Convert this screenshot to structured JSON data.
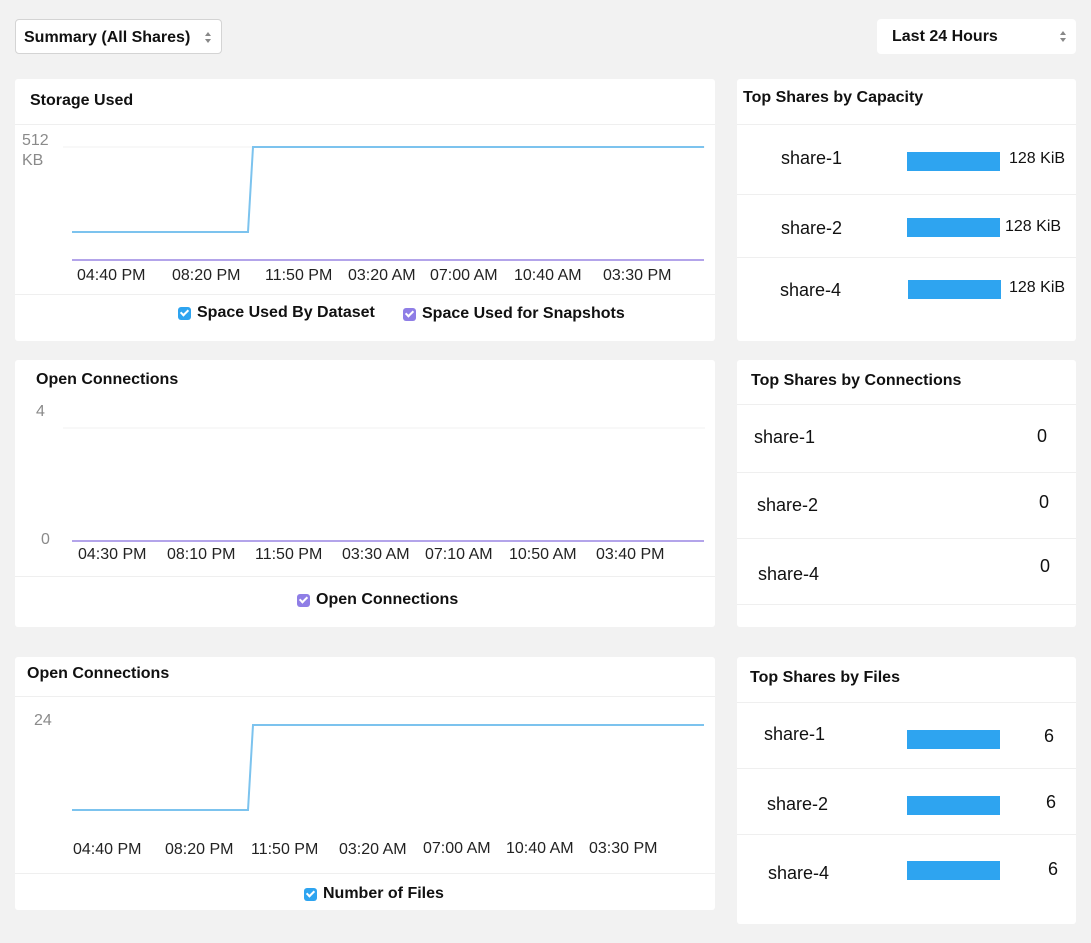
{
  "toolbar": {
    "scope_select": "Summary (All Shares)",
    "range_select": "Last 24 Hours"
  },
  "colors": {
    "dataset": "#2ea4f0",
    "snapshots": "#8f7ee6",
    "bar": "#2ea4f0",
    "line_dataset": "#7cc3ee",
    "line_snapshots": "#b3a4ea"
  },
  "storage_chart": {
    "title": "Storage Used",
    "y_label_top": "512",
    "y_label_unit": "KB",
    "x_ticks": [
      "04:40 PM",
      "08:20 PM",
      "11:50 PM",
      "03:20 AM",
      "07:00 AM",
      "10:40 AM",
      "03:30 PM"
    ],
    "legend": [
      "Space Used By Dataset",
      "Space Used for Snapshots"
    ]
  },
  "connections_chart": {
    "title": "Open Connections",
    "y_label_top": "4",
    "y_label_bottom": "0",
    "x_ticks": [
      "04:30 PM",
      "08:10 PM",
      "11:50 PM",
      "03:30 AM",
      "07:10 AM",
      "10:50 AM",
      "03:40 PM"
    ],
    "legend": [
      "Open Connections"
    ]
  },
  "files_chart": {
    "title": "Open Connections",
    "y_label_top": "24",
    "x_ticks": [
      "04:40 PM",
      "08:20 PM",
      "11:50 PM",
      "03:20 AM",
      "07:00 AM",
      "10:40 AM",
      "03:30 PM"
    ],
    "legend": [
      "Number of Files"
    ]
  },
  "chart_data": [
    {
      "type": "line",
      "title": "Storage Used",
      "x": [
        "04:40 PM",
        "08:20 PM",
        "11:50 PM",
        "03:20 AM",
        "07:00 AM",
        "10:40 AM",
        "03:30 PM"
      ],
      "ylim": [
        0,
        512
      ],
      "series": [
        {
          "name": "Space Used By Dataset",
          "step_points": [
            [
              0,
              128
            ],
            [
              0.28,
              128
            ],
            [
              0.285,
              512
            ],
            [
              1,
              512
            ]
          ]
        },
        {
          "name": "Space Used for Snapshots",
          "step_points": [
            [
              0,
              0
            ],
            [
              1,
              0
            ]
          ]
        }
      ]
    },
    {
      "type": "line",
      "title": "Open Connections",
      "x": [
        "04:30 PM",
        "08:10 PM",
        "11:50 PM",
        "03:30 AM",
        "07:10 AM",
        "10:50 AM",
        "03:40 PM"
      ],
      "ylim": [
        0,
        4
      ],
      "series": [
        {
          "name": "Open Connections",
          "step_points": [
            [
              0,
              0
            ],
            [
              1,
              0
            ]
          ]
        }
      ]
    },
    {
      "type": "line",
      "title": "Open Connections",
      "x": [
        "04:40 PM",
        "08:20 PM",
        "11:50 PM",
        "03:20 AM",
        "07:00 AM",
        "10:40 AM",
        "03:30 PM"
      ],
      "ylim": [
        0,
        24
      ],
      "series": [
        {
          "name": "Number of Files",
          "step_points": [
            [
              0,
              6
            ],
            [
              0.28,
              6
            ],
            [
              0.285,
              24
            ],
            [
              1,
              24
            ]
          ]
        }
      ]
    }
  ],
  "top_capacity": {
    "title": "Top Shares by Capacity",
    "rows": [
      {
        "name": "share-1",
        "value": "128 KiB",
        "fraction": 1.0
      },
      {
        "name": "share-2",
        "value": "128 KiB",
        "fraction": 1.0
      },
      {
        "name": "share-4",
        "value": "128 KiB",
        "fraction": 1.0
      }
    ]
  },
  "top_connections": {
    "title": "Top Shares by Connections",
    "rows": [
      {
        "name": "share-1",
        "value": "0"
      },
      {
        "name": "share-2",
        "value": "0"
      },
      {
        "name": "share-4",
        "value": "0"
      }
    ]
  },
  "top_files": {
    "title": "Top Shares by Files",
    "rows": [
      {
        "name": "share-1",
        "value": "6",
        "fraction": 1.0
      },
      {
        "name": "share-2",
        "value": "6",
        "fraction": 1.0
      },
      {
        "name": "share-4",
        "value": "6",
        "fraction": 1.0
      }
    ]
  }
}
